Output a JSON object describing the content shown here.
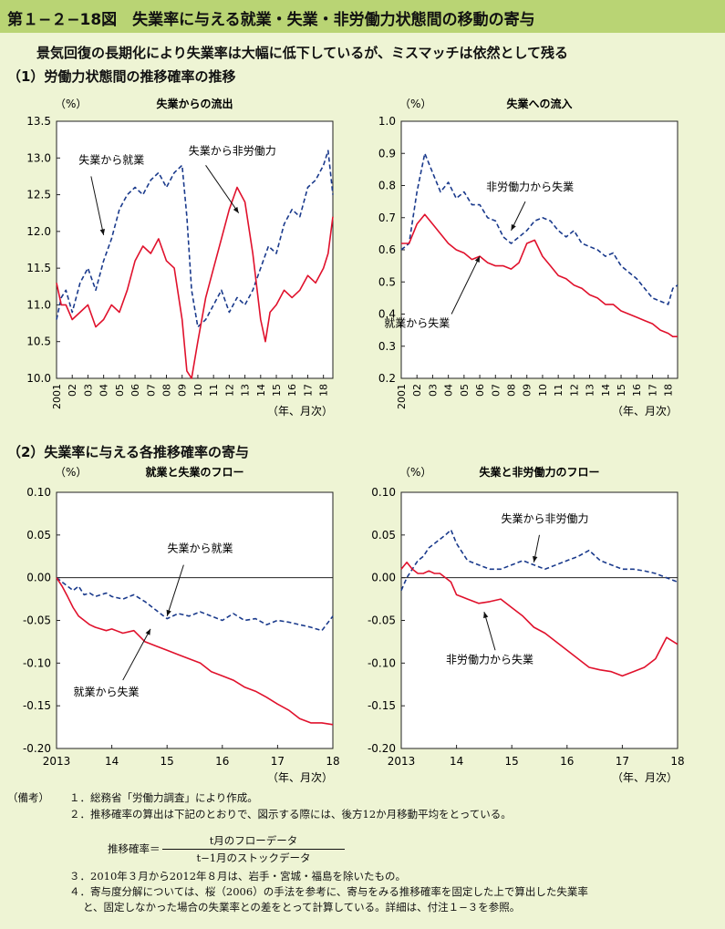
{
  "figure_title": "第１−２−18図　失業率に与える就業・失業・非労働力状態間の移動の寄与",
  "subtitle": "景気回復の長期化により失業率は大幅に低下しているが、ミスマッチは依然として残る",
  "section1": "（1）労働力状態間の推移確率の推移",
  "section2": "（2）失業率に与える各推移確率の寄与",
  "colors": {
    "solid": "#e0112c",
    "dashed": "#1a3a8c",
    "title_bg": "#b9d474",
    "page_bg": "#eef4d4"
  },
  "chart_data": [
    {
      "id": "c1",
      "type": "line",
      "title": "失業からの流出",
      "unit": "（%）",
      "xunit": "（年、月次）",
      "ylim": [
        10.0,
        13.5
      ],
      "ytick_step": 0.5,
      "ytick_decimals": 1,
      "xlim": [
        2001,
        2018.6
      ],
      "xticks": [
        {
          "v": 2001,
          "l": "2001"
        },
        {
          "v": 2002,
          "l": "02"
        },
        {
          "v": 2003,
          "l": "03"
        },
        {
          "v": 2004,
          "l": "04"
        },
        {
          "v": 2005,
          "l": "05"
        },
        {
          "v": 2006,
          "l": "06"
        },
        {
          "v": 2007,
          "l": "07"
        },
        {
          "v": 2008,
          "l": "08"
        },
        {
          "v": 2009,
          "l": "09"
        },
        {
          "v": 2010,
          "l": "10"
        },
        {
          "v": 2011,
          "l": "11"
        },
        {
          "v": 2012,
          "l": "12"
        },
        {
          "v": 2013,
          "l": "13"
        },
        {
          "v": 2014,
          "l": "14"
        },
        {
          "v": 2015,
          "l": "15"
        },
        {
          "v": 2016,
          "l": "16"
        },
        {
          "v": 2017,
          "l": "17"
        },
        {
          "v": 2018,
          "l": "18"
        }
      ],
      "xtick_rotate": true,
      "series": [
        {
          "name": "失業から就業",
          "style": "dashed",
          "x": [
            2001,
            2001.3,
            2001.6,
            2002,
            2002.5,
            2003,
            2003.5,
            2004,
            2004.5,
            2005,
            2005.5,
            2006,
            2006.5,
            2007,
            2007.5,
            2008,
            2008.5,
            2009,
            2009.3,
            2009.6,
            2010,
            2010.5,
            2011,
            2011.5,
            2012,
            2012.5,
            2013,
            2013.5,
            2014,
            2014.5,
            2015,
            2015.5,
            2016,
            2016.5,
            2017,
            2017.5,
            2018,
            2018.3,
            2018.6
          ],
          "values": [
            10.8,
            11.1,
            11.2,
            10.9,
            11.3,
            11.5,
            11.2,
            11.6,
            11.9,
            12.3,
            12.5,
            12.6,
            12.5,
            12.7,
            12.8,
            12.6,
            12.8,
            12.9,
            12.2,
            11.2,
            10.7,
            10.8,
            11.0,
            11.2,
            10.9,
            11.1,
            11.0,
            11.2,
            11.5,
            11.8,
            11.7,
            12.1,
            12.3,
            12.2,
            12.6,
            12.7,
            12.9,
            13.1,
            12.5
          ]
        },
        {
          "name": "失業から非労働力",
          "style": "solid",
          "x": [
            2001,
            2001.3,
            2001.6,
            2002,
            2002.5,
            2003,
            2003.5,
            2004,
            2004.5,
            2005,
            2005.5,
            2006,
            2006.5,
            2007,
            2007.5,
            2008,
            2008.5,
            2009,
            2009.3,
            2009.6,
            2010,
            2010.5,
            2011,
            2011.5,
            2012,
            2012.5,
            2013,
            2013.5,
            2014,
            2014.3,
            2014.6,
            2015,
            2015.5,
            2016,
            2016.5,
            2017,
            2017.5,
            2018,
            2018.3,
            2018.6
          ],
          "values": [
            11.3,
            11.0,
            11.0,
            10.8,
            10.9,
            11.0,
            10.7,
            10.8,
            11.0,
            10.9,
            11.2,
            11.6,
            11.8,
            11.7,
            11.9,
            11.6,
            11.5,
            10.8,
            10.1,
            10.0,
            10.5,
            11.1,
            11.5,
            11.9,
            12.3,
            12.6,
            12.4,
            11.7,
            10.8,
            10.5,
            10.9,
            11.0,
            11.2,
            11.1,
            11.2,
            11.4,
            11.3,
            11.5,
            11.7,
            12.2
          ]
        }
      ],
      "labels": [
        {
          "series": 0,
          "text": "失業から就業",
          "x": 2004.5,
          "y": 12.92,
          "ax": 2003.2,
          "ay": 12.75,
          "tx": 2004.0,
          "ty": 11.95
        },
        {
          "series": 1,
          "text": "失業から非労働力",
          "x": 2012.2,
          "y": 13.05,
          "ax": 2010.5,
          "ay": 12.9,
          "tx": 2012.6,
          "ty": 12.25
        }
      ]
    },
    {
      "id": "c2",
      "type": "line",
      "title": "失業への流入",
      "unit": "（%）",
      "xunit": "（年、月次）",
      "ylim": [
        0.2,
        1.0
      ],
      "ytick_step": 0.1,
      "ytick_decimals": 1,
      "xlim": [
        2001,
        2018.6
      ],
      "xticks": [
        {
          "v": 2001,
          "l": "2001"
        },
        {
          "v": 2002,
          "l": "02"
        },
        {
          "v": 2003,
          "l": "03"
        },
        {
          "v": 2004,
          "l": "04"
        },
        {
          "v": 2005,
          "l": "05"
        },
        {
          "v": 2006,
          "l": "06"
        },
        {
          "v": 2007,
          "l": "07"
        },
        {
          "v": 2008,
          "l": "08"
        },
        {
          "v": 2009,
          "l": "09"
        },
        {
          "v": 2010,
          "l": "10"
        },
        {
          "v": 2011,
          "l": "11"
        },
        {
          "v": 2012,
          "l": "12"
        },
        {
          "v": 2013,
          "l": "13"
        },
        {
          "v": 2014,
          "l": "14"
        },
        {
          "v": 2015,
          "l": "15"
        },
        {
          "v": 2016,
          "l": "16"
        },
        {
          "v": 2017,
          "l": "17"
        },
        {
          "v": 2018,
          "l": "18"
        }
      ],
      "xtick_rotate": true,
      "series": [
        {
          "name": "非労働力から失業",
          "style": "dashed",
          "x": [
            2001,
            2001.5,
            2002,
            2002.5,
            2003,
            2003.5,
            2004,
            2004.5,
            2005,
            2005.5,
            2006,
            2006.5,
            2007,
            2007.5,
            2008,
            2008.5,
            2009,
            2009.5,
            2010,
            2010.5,
            2011,
            2011.5,
            2012,
            2012.5,
            2013,
            2013.5,
            2014,
            2014.5,
            2015,
            2015.5,
            2016,
            2016.5,
            2017,
            2017.5,
            2018,
            2018.3,
            2018.6
          ],
          "values": [
            0.6,
            0.62,
            0.78,
            0.9,
            0.84,
            0.78,
            0.81,
            0.76,
            0.78,
            0.74,
            0.74,
            0.7,
            0.69,
            0.64,
            0.62,
            0.64,
            0.66,
            0.69,
            0.7,
            0.69,
            0.66,
            0.64,
            0.66,
            0.62,
            0.61,
            0.6,
            0.58,
            0.59,
            0.55,
            0.53,
            0.51,
            0.48,
            0.45,
            0.44,
            0.43,
            0.48,
            0.49
          ]
        },
        {
          "name": "就業から失業",
          "style": "solid",
          "x": [
            2001,
            2001.5,
            2002,
            2002.5,
            2003,
            2003.5,
            2004,
            2004.5,
            2005,
            2005.5,
            2006,
            2006.5,
            2007,
            2007.5,
            2008,
            2008.5,
            2009,
            2009.5,
            2010,
            2010.5,
            2011,
            2011.5,
            2012,
            2012.5,
            2013,
            2013.5,
            2014,
            2014.5,
            2015,
            2015.5,
            2016,
            2016.5,
            2017,
            2017.5,
            2018,
            2018.3,
            2018.6
          ],
          "values": [
            0.62,
            0.62,
            0.68,
            0.71,
            0.68,
            0.65,
            0.62,
            0.6,
            0.59,
            0.57,
            0.58,
            0.56,
            0.55,
            0.55,
            0.54,
            0.56,
            0.62,
            0.63,
            0.58,
            0.55,
            0.52,
            0.51,
            0.49,
            0.48,
            0.46,
            0.45,
            0.43,
            0.43,
            0.41,
            0.4,
            0.39,
            0.38,
            0.37,
            0.35,
            0.34,
            0.33,
            0.33
          ]
        }
      ],
      "labels": [
        {
          "series": 0,
          "text": "非労働力から失業",
          "x": 2009.2,
          "y": 0.785,
          "ax": 2008.9,
          "ay": 0.75,
          "tx": 2008.0,
          "ty": 0.66
        },
        {
          "series": 1,
          "text": "就業から失業",
          "x": 2002.0,
          "y": 0.36,
          "ax": 2004.2,
          "ay": 0.4,
          "tx": 2006.0,
          "ty": 0.58
        }
      ]
    },
    {
      "id": "c3",
      "type": "line",
      "title": "就業と失業のフロー",
      "unit": "（%）",
      "xunit": "（年、月次）",
      "ylim": [
        -0.2,
        0.1
      ],
      "ytick_step": 0.05,
      "ytick_decimals": 2,
      "xlim": [
        2013,
        2018
      ],
      "xticks": [
        {
          "v": 2013,
          "l": "2013"
        },
        {
          "v": 2014,
          "l": "14"
        },
        {
          "v": 2015,
          "l": "15"
        },
        {
          "v": 2016,
          "l": "16"
        },
        {
          "v": 2017,
          "l": "17"
        },
        {
          "v": 2018,
          "l": "18"
        }
      ],
      "xtick_rotate": false,
      "zero_line": true,
      "series": [
        {
          "name": "失業から就業",
          "style": "dashed",
          "x": [
            2013,
            2013.1,
            2013.2,
            2013.3,
            2013.4,
            2013.5,
            2013.6,
            2013.7,
            2013.8,
            2013.9,
            2014,
            2014.2,
            2014.4,
            2014.6,
            2014.8,
            2015,
            2015.2,
            2015.4,
            2015.6,
            2015.8,
            2016,
            2016.2,
            2016.4,
            2016.6,
            2016.8,
            2017,
            2017.2,
            2017.4,
            2017.6,
            2017.8,
            2018
          ],
          "values": [
            0.0,
            -0.005,
            -0.01,
            -0.015,
            -0.01,
            -0.02,
            -0.018,
            -0.022,
            -0.02,
            -0.018,
            -0.022,
            -0.025,
            -0.02,
            -0.028,
            -0.038,
            -0.048,
            -0.042,
            -0.045,
            -0.04,
            -0.045,
            -0.05,
            -0.042,
            -0.05,
            -0.048,
            -0.055,
            -0.05,
            -0.052,
            -0.055,
            -0.058,
            -0.062,
            -0.045
          ]
        },
        {
          "name": "就業から失業",
          "style": "solid",
          "x": [
            2013,
            2013.1,
            2013.2,
            2013.3,
            2013.4,
            2013.5,
            2013.6,
            2013.7,
            2013.8,
            2013.9,
            2014,
            2014.2,
            2014.4,
            2014.6,
            2014.8,
            2015,
            2015.2,
            2015.4,
            2015.6,
            2015.8,
            2016,
            2016.2,
            2016.4,
            2016.6,
            2016.8,
            2017,
            2017.2,
            2017.4,
            2017.6,
            2017.8,
            2018
          ],
          "values": [
            0.0,
            -0.01,
            -0.022,
            -0.035,
            -0.045,
            -0.05,
            -0.055,
            -0.058,
            -0.06,
            -0.062,
            -0.06,
            -0.065,
            -0.062,
            -0.075,
            -0.08,
            -0.085,
            -0.09,
            -0.095,
            -0.1,
            -0.11,
            -0.115,
            -0.12,
            -0.128,
            -0.133,
            -0.14,
            -0.148,
            -0.155,
            -0.165,
            -0.17,
            -0.17,
            -0.172
          ]
        }
      ],
      "labels": [
        {
          "series": 0,
          "text": "失業から就業",
          "x": 2015.6,
          "y": 0.03,
          "ax": 2015.3,
          "ay": 0.015,
          "tx": 2015.0,
          "ty": -0.045
        },
        {
          "series": 1,
          "text": "就業から失業",
          "x": 2013.9,
          "y": -0.138,
          "ax": 2014.2,
          "ay": -0.12,
          "tx": 2014.7,
          "ty": -0.06
        }
      ]
    },
    {
      "id": "c4",
      "type": "line",
      "title": "失業と非労働力のフロー",
      "unit": "（%）",
      "xunit": "（年、月次）",
      "ylim": [
        -0.2,
        0.1
      ],
      "ytick_step": 0.05,
      "ytick_decimals": 2,
      "xlim": [
        2013,
        2018
      ],
      "xticks": [
        {
          "v": 2013,
          "l": "2013"
        },
        {
          "v": 2014,
          "l": "14"
        },
        {
          "v": 2015,
          "l": "15"
        },
        {
          "v": 2016,
          "l": "16"
        },
        {
          "v": 2017,
          "l": "17"
        },
        {
          "v": 2018,
          "l": "18"
        }
      ],
      "xtick_rotate": false,
      "zero_line": true,
      "series": [
        {
          "name": "失業から非労働力",
          "style": "dashed",
          "x": [
            2013,
            2013.1,
            2013.2,
            2013.3,
            2013.4,
            2013.5,
            2013.6,
            2013.7,
            2013.8,
            2013.9,
            2014,
            2014.2,
            2014.4,
            2014.6,
            2014.8,
            2015,
            2015.2,
            2015.4,
            2015.6,
            2015.8,
            2016,
            2016.2,
            2016.4,
            2016.6,
            2016.8,
            2017,
            2017.2,
            2017.4,
            2017.6,
            2017.8,
            2018
          ],
          "values": [
            -0.015,
            0.0,
            0.01,
            0.02,
            0.025,
            0.035,
            0.04,
            0.045,
            0.05,
            0.056,
            0.04,
            0.02,
            0.015,
            0.01,
            0.01,
            0.015,
            0.02,
            0.015,
            0.01,
            0.015,
            0.02,
            0.025,
            0.032,
            0.02,
            0.015,
            0.01,
            0.01,
            0.008,
            0.005,
            0.0,
            -0.005
          ]
        },
        {
          "name": "非労働力から失業",
          "style": "solid",
          "x": [
            2013,
            2013.1,
            2013.2,
            2013.3,
            2013.4,
            2013.5,
            2013.6,
            2013.7,
            2013.8,
            2013.9,
            2014,
            2014.2,
            2014.4,
            2014.6,
            2014.8,
            2015,
            2015.2,
            2015.4,
            2015.6,
            2015.8,
            2016,
            2016.2,
            2016.4,
            2016.6,
            2016.8,
            2017,
            2017.2,
            2017.4,
            2017.6,
            2017.8,
            2018
          ],
          "values": [
            0.01,
            0.018,
            0.01,
            0.005,
            0.005,
            0.008,
            0.005,
            0.005,
            0.0,
            -0.005,
            -0.02,
            -0.025,
            -0.03,
            -0.028,
            -0.025,
            -0.035,
            -0.045,
            -0.058,
            -0.065,
            -0.075,
            -0.085,
            -0.095,
            -0.105,
            -0.108,
            -0.11,
            -0.115,
            -0.11,
            -0.105,
            -0.095,
            -0.07,
            -0.078
          ]
        }
      ],
      "labels": [
        {
          "series": 0,
          "text": "失業から非労働力",
          "x": 2015.6,
          "y": 0.065,
          "ax": 2015.5,
          "ay": 0.05,
          "tx": 2015.4,
          "ty": 0.018
        },
        {
          "series": 1,
          "text": "非労働力から失業",
          "x": 2014.6,
          "y": -0.1,
          "ax": 2014.7,
          "ay": -0.085,
          "tx": 2014.5,
          "ty": -0.04
        }
      ]
    }
  ],
  "notes": {
    "label": "（備考）",
    "n1": "１．総務省「労働力調査」により作成。",
    "n2": "２．推移確率の算出は下記のとおりで、図示する際には、後方12か月移動平均をとっている。",
    "formula_lhs": "推移確率＝",
    "formula_num": "t月のフローデータ",
    "formula_den": "t−1月のストックデータ",
    "n3": "３．2010年３月から2012年８月は、岩手・宮城・福島を除いたもの。",
    "n4a": "４．寄与度分解については、桜（2006）の手法を参考に、寄与をみる推移確率を固定した上で算出した失業率",
    "n4b": "と、固定しなかった場合の失業率との差をとって計算している。詳細は、付注１−３を参照。"
  }
}
